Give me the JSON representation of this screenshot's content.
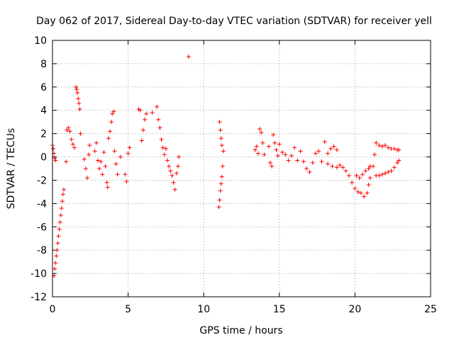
{
  "chart_data": {
    "type": "scatter",
    "title": "Day 062 of 2017, Sidereal Day-to-day VTEC variation (SDTVAR) for receiver yell",
    "xlabel": "GPS time / hours",
    "ylabel": "SDTVAR / TECUs",
    "xlim": [
      0,
      25
    ],
    "ylim": [
      -12,
      10
    ],
    "xticks": [
      0,
      5,
      10,
      15,
      20,
      25
    ],
    "yticks": [
      -12,
      -10,
      -8,
      -6,
      -4,
      -2,
      0,
      2,
      4,
      6,
      8,
      10
    ],
    "xtick_labels": [
      "0",
      "5",
      "10",
      "15",
      "20",
      "25"
    ],
    "ytick_labels": [
      "-12",
      "-10",
      "-8",
      "-6",
      "-4",
      "-2",
      "0",
      "2",
      "4",
      "6",
      "8",
      "10"
    ],
    "grid": true,
    "marker": "+",
    "series": [
      {
        "name": "SDTVAR",
        "color": "#ff0000",
        "points": [
          [
            0.0,
            1.0
          ],
          [
            0.05,
            0.7
          ],
          [
            0.1,
            0.3
          ],
          [
            0.15,
            -0.1
          ],
          [
            0.2,
            -0.3
          ],
          [
            0.1,
            -10.2
          ],
          [
            0.15,
            -9.6
          ],
          [
            0.2,
            -9.1
          ],
          [
            0.25,
            -8.5
          ],
          [
            0.3,
            -8.0
          ],
          [
            0.35,
            -7.4
          ],
          [
            0.4,
            -6.8
          ],
          [
            0.45,
            -6.2
          ],
          [
            0.5,
            -5.6
          ],
          [
            0.55,
            -5.0
          ],
          [
            0.6,
            -4.4
          ],
          [
            0.65,
            -3.8
          ],
          [
            0.7,
            -3.2
          ],
          [
            0.75,
            -2.8
          ],
          [
            0.9,
            -0.4
          ],
          [
            0.95,
            2.3
          ],
          [
            1.05,
            2.5
          ],
          [
            1.15,
            2.2
          ],
          [
            1.25,
            1.5
          ],
          [
            1.35,
            1.1
          ],
          [
            1.45,
            0.8
          ],
          [
            1.55,
            6.0
          ],
          [
            1.6,
            5.8
          ],
          [
            1.65,
            5.5
          ],
          [
            1.7,
            5.0
          ],
          [
            1.75,
            4.6
          ],
          [
            1.8,
            4.1
          ],
          [
            1.85,
            2.0
          ],
          [
            2.1,
            -0.2
          ],
          [
            2.2,
            -1.0
          ],
          [
            2.3,
            -1.8
          ],
          [
            2.4,
            0.2
          ],
          [
            2.45,
            1.0
          ],
          [
            2.8,
            0.5
          ],
          [
            2.9,
            1.2
          ],
          [
            3.0,
            -0.3
          ],
          [
            3.1,
            -1.0
          ],
          [
            3.2,
            -0.4
          ],
          [
            3.3,
            -1.5
          ],
          [
            3.4,
            0.4
          ],
          [
            3.5,
            -0.8
          ],
          [
            3.6,
            -2.2
          ],
          [
            3.65,
            -2.6
          ],
          [
            3.7,
            1.6
          ],
          [
            3.8,
            2.2
          ],
          [
            3.9,
            3.0
          ],
          [
            3.95,
            3.7
          ],
          [
            4.05,
            3.9
          ],
          [
            4.1,
            0.5
          ],
          [
            4.2,
            -0.6
          ],
          [
            4.3,
            -1.5
          ],
          [
            4.5,
            0.0
          ],
          [
            4.8,
            -1.5
          ],
          [
            4.9,
            -2.1
          ],
          [
            5.0,
            0.3
          ],
          [
            5.1,
            0.8
          ],
          [
            5.7,
            4.1
          ],
          [
            5.8,
            4.0
          ],
          [
            5.9,
            1.4
          ],
          [
            6.0,
            2.3
          ],
          [
            6.1,
            3.2
          ],
          [
            6.2,
            3.7
          ],
          [
            6.6,
            3.8
          ],
          [
            6.9,
            4.3
          ],
          [
            7.0,
            3.2
          ],
          [
            7.1,
            2.5
          ],
          [
            7.2,
            1.5
          ],
          [
            7.3,
            0.8
          ],
          [
            7.4,
            0.2
          ],
          [
            7.5,
            0.7
          ],
          [
            7.6,
            -0.3
          ],
          [
            7.7,
            -0.8
          ],
          [
            7.8,
            -1.2
          ],
          [
            7.9,
            -1.6
          ],
          [
            8.0,
            -2.2
          ],
          [
            8.1,
            -2.8
          ],
          [
            8.2,
            -1.4
          ],
          [
            8.3,
            -0.8
          ],
          [
            8.35,
            0.0
          ],
          [
            9.0,
            8.6
          ],
          [
            11.0,
            -4.3
          ],
          [
            11.05,
            -3.7
          ],
          [
            11.1,
            -2.9
          ],
          [
            11.15,
            -2.3
          ],
          [
            11.2,
            -1.7
          ],
          [
            11.25,
            -0.8
          ],
          [
            11.3,
            0.5
          ],
          [
            11.05,
            3.0
          ],
          [
            11.1,
            2.3
          ],
          [
            11.15,
            1.6
          ],
          [
            11.2,
            1.0
          ],
          [
            13.4,
            0.6
          ],
          [
            13.5,
            0.9
          ],
          [
            13.6,
            0.3
          ],
          [
            13.7,
            2.4
          ],
          [
            13.8,
            2.1
          ],
          [
            13.9,
            1.2
          ],
          [
            14.0,
            0.2
          ],
          [
            14.3,
            0.9
          ],
          [
            14.4,
            -0.5
          ],
          [
            14.5,
            -0.8
          ],
          [
            14.6,
            1.9
          ],
          [
            14.7,
            1.2
          ],
          [
            14.8,
            0.6
          ],
          [
            14.9,
            0.1
          ],
          [
            15.0,
            1.1
          ],
          [
            15.2,
            0.4
          ],
          [
            15.4,
            0.2
          ],
          [
            15.6,
            -0.3
          ],
          [
            15.8,
            0.1
          ],
          [
            16.0,
            0.8
          ],
          [
            16.2,
            -0.3
          ],
          [
            16.4,
            0.5
          ],
          [
            16.6,
            -0.4
          ],
          [
            16.8,
            -1.0
          ],
          [
            17.0,
            -1.3
          ],
          [
            17.2,
            -0.5
          ],
          [
            17.4,
            0.3
          ],
          [
            17.6,
            0.5
          ],
          [
            17.8,
            -0.4
          ],
          [
            18.0,
            1.3
          ],
          [
            18.2,
            0.3
          ],
          [
            18.4,
            0.7
          ],
          [
            18.6,
            0.9
          ],
          [
            18.8,
            0.6
          ],
          [
            18.2,
            -0.6
          ],
          [
            18.5,
            -0.8
          ],
          [
            18.8,
            -0.9
          ],
          [
            19.0,
            -0.7
          ],
          [
            19.2,
            -0.9
          ],
          [
            19.4,
            -1.2
          ],
          [
            19.6,
            -1.6
          ],
          [
            19.8,
            -2.2
          ],
          [
            20.0,
            -2.7
          ],
          [
            20.2,
            -3.0
          ],
          [
            20.4,
            -3.1
          ],
          [
            20.6,
            -3.4
          ],
          [
            20.8,
            -3.1
          ],
          [
            20.9,
            -2.4
          ],
          [
            20.1,
            -1.6
          ],
          [
            20.3,
            -1.8
          ],
          [
            20.5,
            -1.5
          ],
          [
            20.7,
            -1.2
          ],
          [
            20.9,
            -1.0
          ],
          [
            21.0,
            -0.8
          ],
          [
            21.0,
            -1.8
          ],
          [
            21.2,
            -0.8
          ],
          [
            21.3,
            0.2
          ],
          [
            21.4,
            1.2
          ],
          [
            21.6,
            1.0
          ],
          [
            21.8,
            0.9
          ],
          [
            22.0,
            1.0
          ],
          [
            22.2,
            0.8
          ],
          [
            22.4,
            0.7
          ],
          [
            22.6,
            0.7
          ],
          [
            22.8,
            0.6
          ],
          [
            22.9,
            0.6
          ],
          [
            21.4,
            -1.6
          ],
          [
            21.6,
            -1.6
          ],
          [
            21.8,
            -1.5
          ],
          [
            22.0,
            -1.4
          ],
          [
            22.2,
            -1.3
          ],
          [
            22.4,
            -1.2
          ],
          [
            22.6,
            -0.9
          ],
          [
            22.8,
            -0.5
          ],
          [
            22.9,
            -0.3
          ]
        ]
      }
    ]
  }
}
